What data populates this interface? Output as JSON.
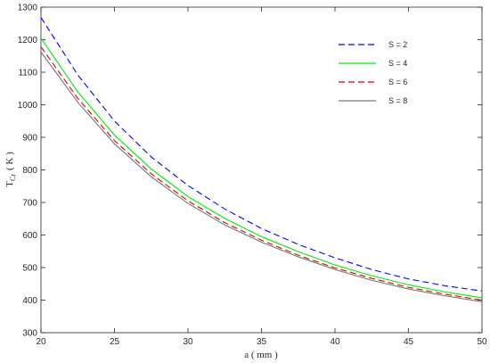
{
  "chart_data": {
    "type": "line",
    "xlabel": "a ( mm )",
    "ylabel_main": "T",
    "ylabel_sub": "Cr",
    "ylabel_unit": "( K )",
    "xlim": [
      20,
      50
    ],
    "ylim": [
      300,
      1300
    ],
    "x_ticks": [
      20,
      25,
      30,
      35,
      40,
      45,
      50
    ],
    "y_ticks": [
      300,
      400,
      500,
      600,
      700,
      800,
      900,
      1000,
      1100,
      1200,
      1300
    ],
    "grid": false,
    "legend_position": "top-right",
    "x": [
      20,
      22.5,
      25,
      27.5,
      30,
      32.5,
      35,
      37.5,
      40,
      42.5,
      45,
      47.5,
      50
    ],
    "series": [
      {
        "name": "S = 2",
        "color": "#0000ff",
        "dash": "dashed",
        "values": [
          1268,
          1092,
          950,
          840,
          752,
          680,
          620,
          571,
          530,
          494,
          465,
          444,
          428
        ]
      },
      {
        "name": "S = 4",
        "color": "#00ee00",
        "dash": "solid",
        "values": [
          1205,
          1040,
          907,
          803,
          718,
          651,
          595,
          549,
          508,
          475,
          447,
          425,
          407
        ]
      },
      {
        "name": "S = 6",
        "color": "#dd0000",
        "dash": "dashed",
        "values": [
          1178,
          1020,
          890,
          788,
          705,
          638,
          584,
          538,
          499,
          467,
          439,
          418,
          400
        ]
      },
      {
        "name": "S = 8",
        "color": "#777777",
        "dash": "solid",
        "values": [
          1162,
          1008,
          880,
          779,
          697,
          631,
          578,
          533,
          494,
          461,
          434,
          413,
          395
        ]
      }
    ]
  }
}
